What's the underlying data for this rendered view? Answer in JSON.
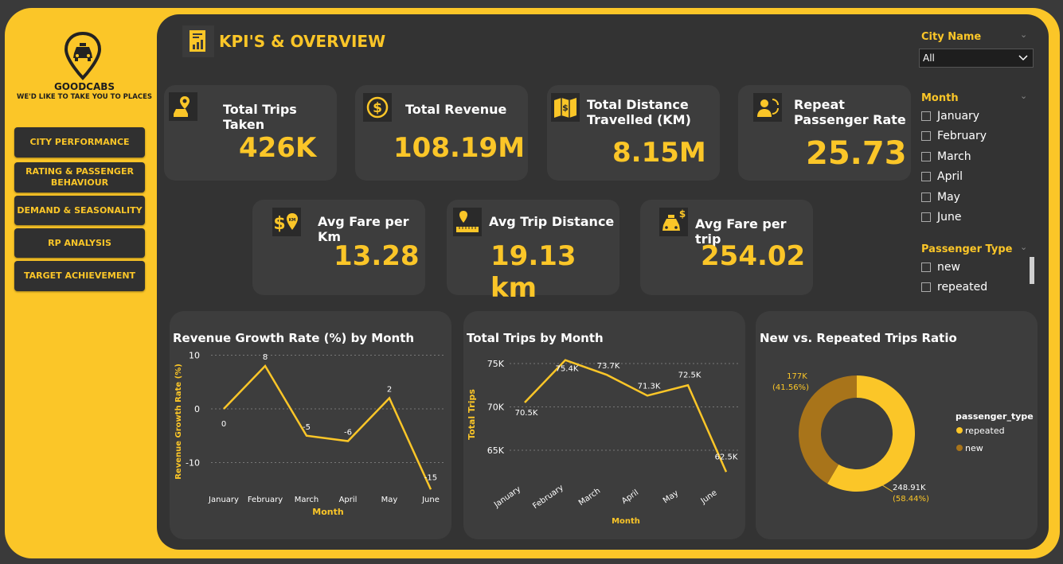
{
  "brand": {
    "name": "GOODCABS",
    "tagline": "WE'D LIKE TO TAKE YOU TO PLACES"
  },
  "nav": [
    "CITY PERFORMANCE",
    "RATING & PASSENGER BEHAVIOUR",
    "DEMAND & SEASONALITY",
    "RP ANALYSIS",
    "TARGET ACHIEVEMENT"
  ],
  "page_title": "KPI'S & OVERVIEW",
  "kpis": {
    "total_trips": {
      "label": "Total Trips Taken",
      "value": "426K"
    },
    "total_revenue": {
      "label": "Total Revenue",
      "value": "108.19M"
    },
    "total_distance": {
      "label": "Total Distance Travelled (KM)",
      "value": "8.15M"
    },
    "repeat_rate": {
      "label": "Repeat Passenger Rate",
      "value": "25.73"
    },
    "avg_fare_km": {
      "label": "Avg Fare per Km",
      "value": "13.28"
    },
    "avg_trip_distance": {
      "label": "Avg Trip Distance",
      "value": "19.13 km"
    },
    "avg_fare_trip": {
      "label": "Avg Fare per trip",
      "value": "254.02"
    }
  },
  "slicers": {
    "city": {
      "title": "City Name",
      "selected": "All"
    },
    "month": {
      "title": "Month",
      "options": [
        "January",
        "February",
        "March",
        "April",
        "May",
        "June"
      ]
    },
    "passenger_type": {
      "title": "Passenger Type",
      "options": [
        "new",
        "repeated"
      ]
    }
  },
  "colors": {
    "accent": "#FBC628",
    "panel": "#3d3d3d",
    "background": "#333333",
    "new": "#A8741A",
    "repeated": "#FBC628"
  },
  "chart_data": [
    {
      "type": "line",
      "title": "Revenue Growth Rate (%) by Month",
      "xlabel": "Month",
      "ylabel": "Revenue Growth Rate (%)",
      "categories": [
        "January",
        "February",
        "March",
        "April",
        "May",
        "June"
      ],
      "values": [
        0,
        8,
        -5,
        -6,
        2,
        -15
      ],
      "labels": [
        "0",
        "8",
        "-5",
        "-6",
        "2",
        "-15"
      ],
      "yticks": [
        "10",
        "0",
        "-10"
      ],
      "ylim": [
        -15,
        10
      ],
      "grid": true
    },
    {
      "type": "line",
      "title": "Total Trips by Month",
      "xlabel": "Month",
      "ylabel": "Total Trips",
      "categories": [
        "January",
        "February",
        "March",
        "April",
        "May",
        "June"
      ],
      "values": [
        70500,
        75400,
        73700,
        71300,
        72500,
        62500
      ],
      "labels": [
        "70.5K",
        "75.4K",
        "73.7K",
        "71.3K",
        "72.5K",
        "62.5K"
      ],
      "yticks": [
        "75K",
        "70K",
        "65K"
      ],
      "ylim": [
        62500,
        75500
      ],
      "grid": true
    },
    {
      "type": "pie",
      "title": "New vs. Repeated Trips Ratio",
      "legend_title": "passenger_type",
      "legend_position": "right",
      "series": [
        {
          "name": "repeated",
          "value": 248910,
          "label": "248.91K",
          "percent_label": "(58.44%)"
        },
        {
          "name": "new",
          "value": 177000,
          "label": "177K",
          "percent_label": "(41.56%)"
        }
      ]
    }
  ]
}
